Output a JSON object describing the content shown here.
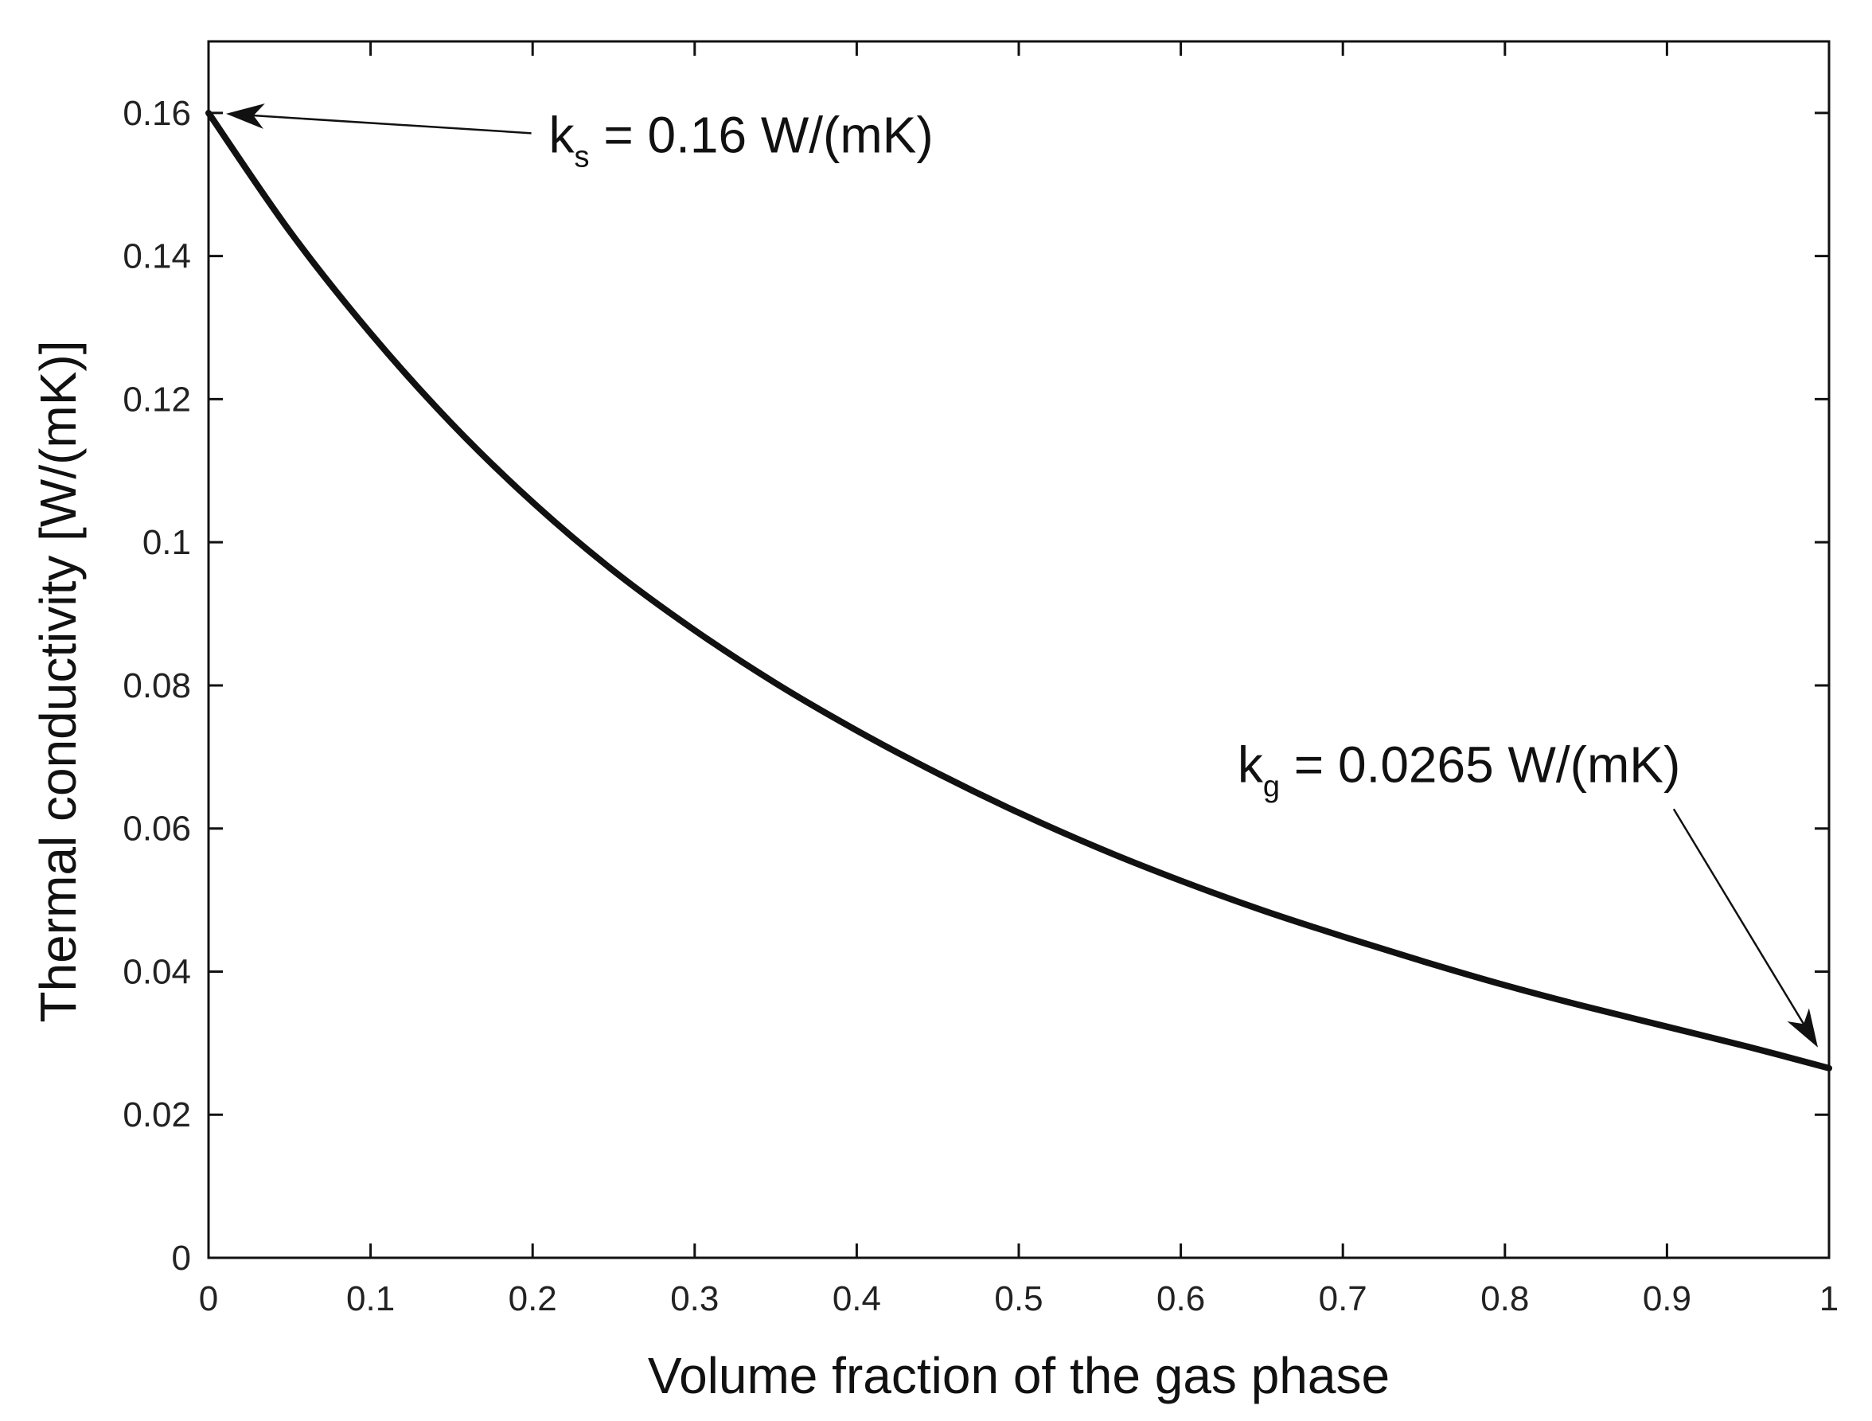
{
  "chart_data": {
    "type": "line",
    "title": "",
    "xlabel": "Volume fraction of the gas phase",
    "ylabel": "Thermal conductivity [W/(mK)]",
    "xlim": [
      0,
      1
    ],
    "ylim": [
      0,
      0.17
    ],
    "x_ticks": [
      0,
      0.1,
      0.2,
      0.3,
      0.4,
      0.5,
      0.6,
      0.7,
      0.8,
      0.9,
      1
    ],
    "x_tick_labels": [
      "0",
      "0.1",
      "0.2",
      "0.3",
      "0.4",
      "0.5",
      "0.6",
      "0.7",
      "0.8",
      "0.9",
      "1"
    ],
    "y_ticks": [
      0,
      0.02,
      0.04,
      0.06,
      0.08,
      0.1,
      0.12,
      0.14,
      0.16
    ],
    "y_tick_labels": [
      "0",
      "0.02",
      "0.04",
      "0.06",
      "0.08",
      "0.1",
      "0.12",
      "0.14",
      "0.16"
    ],
    "grid": false,
    "series": [
      {
        "color": "#111111",
        "x": [
          0,
          0.05,
          0.1,
          0.15,
          0.2,
          0.25,
          0.3,
          0.35,
          0.4,
          0.45,
          0.5,
          0.55,
          0.6,
          0.65,
          0.7,
          0.75,
          0.8,
          0.85,
          0.9,
          0.95,
          1
        ],
        "y": [
          0.16,
          0.1435,
          0.1292,
          0.1166,
          0.1056,
          0.096,
          0.0877,
          0.0803,
          0.0737,
          0.0677,
          0.0622,
          0.0572,
          0.0527,
          0.0486,
          0.0449,
          0.0414,
          0.0381,
          0.0351,
          0.0323,
          0.0295,
          0.0265
        ]
      }
    ],
    "annotations": [
      {
        "symbol": "k",
        "subscript": "s",
        "text": " = 0.16 W/(mK)",
        "point": [
          0,
          0.16
        ],
        "text_anchor": [
          0.21,
          0.1545
        ]
      },
      {
        "symbol": "k",
        "subscript": "g",
        "text": " = 0.0265 W/(mK)",
        "point": [
          1,
          0.0265
        ],
        "text_anchor": [
          0.635,
          0.0665
        ]
      }
    ]
  }
}
